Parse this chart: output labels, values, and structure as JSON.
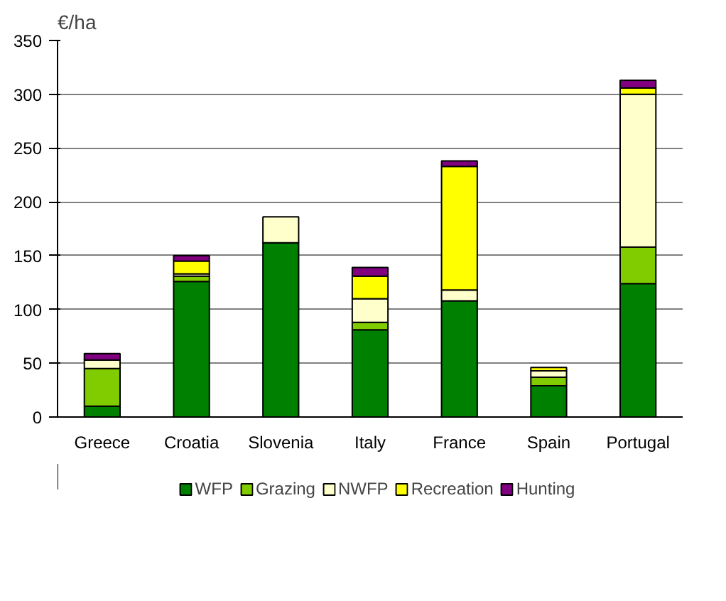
{
  "chart_data": {
    "type": "bar",
    "stacked": true,
    "ylabel": "€/ha",
    "categories": [
      "Greece",
      "Croatia",
      "Slovenia",
      "Italy",
      "France",
      "Spain",
      "Portugal"
    ],
    "series": [
      {
        "name": "WFP",
        "color": "#008000",
        "values": [
          10,
          126,
          162,
          81,
          108,
          29,
          124
        ]
      },
      {
        "name": "Grazing",
        "color": "#80cc00",
        "values": [
          35,
          5,
          0,
          7,
          0,
          8,
          34
        ]
      },
      {
        "name": "NWFP",
        "color": "#ffffcc",
        "values": [
          8,
          2,
          24,
          22,
          10,
          6,
          142
        ]
      },
      {
        "name": "Recreation",
        "color": "#ffff00",
        "values": [
          0,
          12,
          0,
          21,
          115,
          3,
          6
        ]
      },
      {
        "name": "Hunting",
        "color": "#800080",
        "values": [
          6,
          5,
          0,
          8,
          5,
          0,
          7
        ]
      }
    ],
    "ylim": [
      0,
      350
    ],
    "yticks": [
      0,
      50,
      100,
      150,
      200,
      250,
      300,
      350
    ],
    "grid": "y",
    "legend": "bottom"
  }
}
